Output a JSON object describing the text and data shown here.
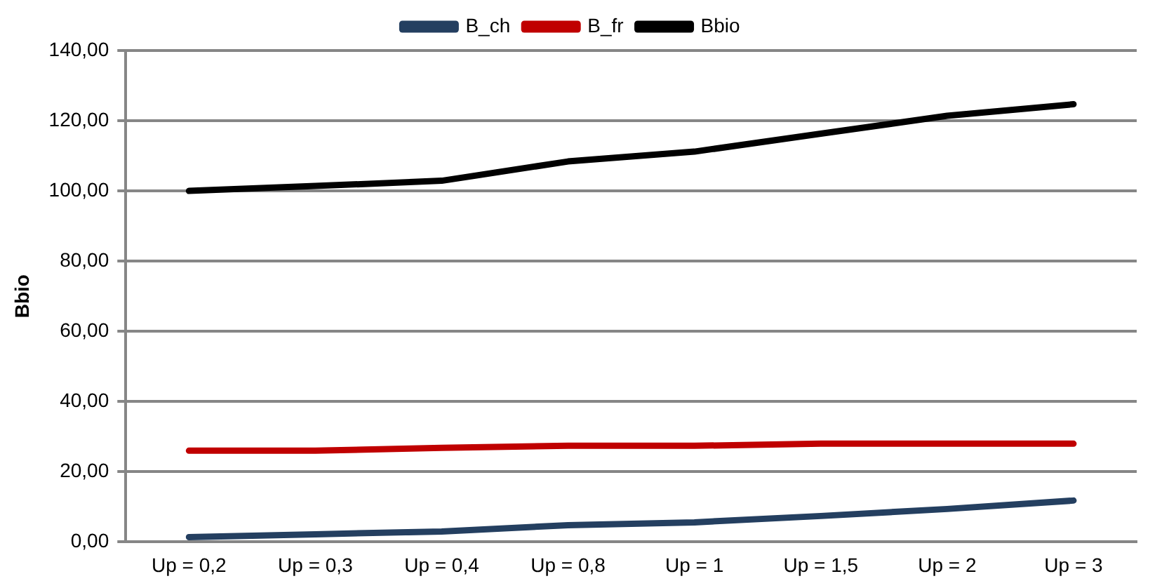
{
  "chart_data": {
    "type": "line",
    "ylabel": "Bbio",
    "categories": [
      "Up = 0,2",
      "Up = 0,3",
      "Up = 0,4",
      "Up = 0,8",
      "Up = 1",
      "Up = 1,5",
      "Up = 2",
      "Up = 3"
    ],
    "series": [
      {
        "name": "B_ch",
        "color": "#243f60",
        "values": [
          1.4,
          2.2,
          3,
          4.8,
          5.6,
          7.4,
          9.4,
          11.8
        ]
      },
      {
        "name": "B_fr",
        "color": "#c00000",
        "values": [
          26,
          26,
          26.8,
          27.4,
          27.4,
          28,
          28,
          28
        ]
      },
      {
        "name": "Bbio",
        "color": "#000000",
        "values": [
          100,
          101.4,
          102.9,
          108.4,
          111.2,
          116.3,
          121.4,
          124.7
        ]
      }
    ],
    "ylim": [
      0,
      140
    ],
    "yticks": [
      {
        "value": 0,
        "label": "0,00"
      },
      {
        "value": 20,
        "label": "20,00"
      },
      {
        "value": 40,
        "label": "40,00"
      },
      {
        "value": 60,
        "label": "60,00"
      },
      {
        "value": 80,
        "label": "80,00"
      },
      {
        "value": 100,
        "label": "100,00"
      },
      {
        "value": 120,
        "label": "120,00"
      },
      {
        "value": 140,
        "label": "140,00"
      }
    ],
    "grid": "y",
    "legend": "top",
    "marker": "none",
    "line_style": "solid"
  }
}
